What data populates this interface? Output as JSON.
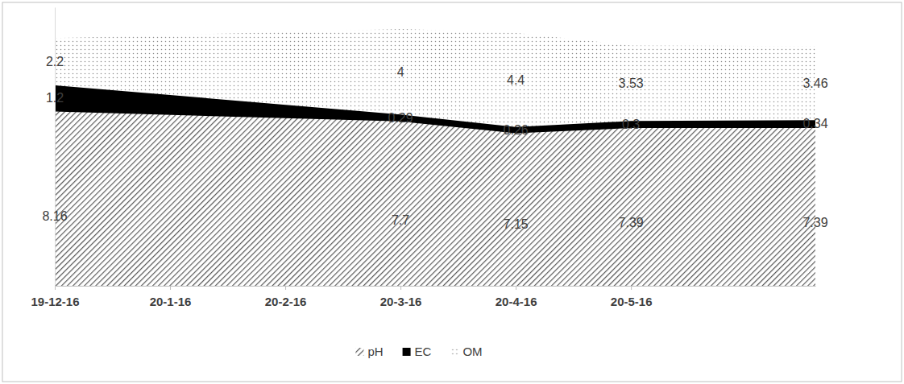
{
  "chart_data": {
    "type": "area",
    "stacked": true,
    "data_labels": true,
    "tick_labels": "x",
    "legend": "bottom",
    "x": [
      0,
      3,
      4,
      5,
      6.6
    ],
    "xlim": [
      0,
      6.6
    ],
    "xticks": [
      {
        "value": 0,
        "label": "19-12-16"
      },
      {
        "value": 1,
        "label": "20-1-16"
      },
      {
        "value": 2,
        "label": "20-2-16"
      },
      {
        "value": 3,
        "label": "20-3-16"
      },
      {
        "value": 4,
        "label": "20-4-16"
      },
      {
        "value": 5,
        "label": "20-5-16"
      }
    ],
    "ylim": [
      0,
      13
    ],
    "yticks": [],
    "series": [
      {
        "name": "pH",
        "color": "#595959",
        "values": [
          8.16,
          7.7,
          7.15,
          7.39,
          7.39
        ]
      },
      {
        "name": "EC",
        "color": "#000000",
        "values": [
          1.2,
          0.29,
          0.26,
          0.3,
          0.34
        ]
      },
      {
        "name": "OM",
        "color": "#8c8c8c",
        "values": [
          2.2,
          4,
          4.4,
          3.53,
          3.46
        ]
      }
    ]
  }
}
